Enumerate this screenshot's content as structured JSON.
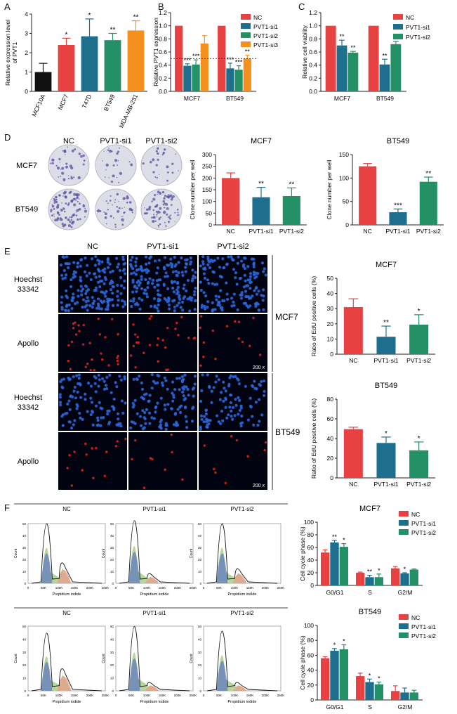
{
  "panel_letters": [
    "A",
    "B",
    "C",
    "D",
    "E",
    "F"
  ],
  "colors": {
    "black": "#111111",
    "red": "#e84142",
    "blue": "#1e6f8e",
    "green": "#239165",
    "orange": "#f4901d"
  },
  "chart_data": [
    {
      "id": "A",
      "type": "bar",
      "categories": [
        "MCF10A",
        "MCF7",
        "T47D",
        "BT549",
        "MDA-MB-231"
      ],
      "values": [
        1.0,
        2.4,
        2.85,
        2.65,
        3.15
      ],
      "errors": [
        0.45,
        0.35,
        0.9,
        0.35,
        0.5
      ],
      "sig": [
        "",
        "*",
        "*",
        "**",
        "**"
      ],
      "colors": [
        "#111111",
        "#e84142",
        "#1e6f8e",
        "#239165",
        "#f4901d"
      ],
      "ylabel": "Relative expression level of PVT1",
      "ylim": [
        0,
        4
      ],
      "yticks": [
        0,
        1,
        2,
        3,
        4
      ],
      "yticklabels": [
        "0",
        "1",
        "2",
        "3",
        "4"
      ]
    },
    {
      "id": "B",
      "type": "bar",
      "groups": [
        "MCF7",
        "BT549"
      ],
      "series": [
        {
          "name": "NC",
          "color": "#e84142",
          "values": [
            1.0,
            1.0
          ],
          "errors": [
            0,
            0
          ],
          "sig": [
            "",
            ""
          ]
        },
        {
          "name": "PVT1-si1",
          "color": "#1e6f8e",
          "values": [
            0.39,
            0.35
          ],
          "errors": [
            0.03,
            0.08
          ],
          "sig": [
            "***",
            "***"
          ]
        },
        {
          "name": "PVT1-si2",
          "color": "#239165",
          "values": [
            0.41,
            0.33
          ],
          "errors": [
            0.07,
            0.06
          ],
          "sig": [
            "***",
            "***"
          ]
        },
        {
          "name": "PVT1-si3",
          "color": "#f4901d",
          "values": [
            0.73,
            0.5
          ],
          "errors": [
            0.12,
            0.05
          ],
          "sig": [
            "",
            "**"
          ]
        }
      ],
      "ylabel": "Relative PVT1 expression",
      "ylim": [
        0,
        1.2
      ],
      "yticks": [
        0,
        0.2,
        0.4,
        0.6,
        0.8,
        1.0,
        1.2
      ],
      "yticklabels": [
        "0.0",
        "0.2",
        "0.4",
        "0.6",
        "0.8",
        "1.0",
        "1.2"
      ],
      "refline": 0.5
    },
    {
      "id": "C",
      "type": "bar",
      "groups": [
        "MCF7",
        "BT549"
      ],
      "series": [
        {
          "name": "NC",
          "color": "#e84142",
          "values": [
            1.0,
            1.0
          ],
          "errors": [
            0,
            0
          ],
          "sig": [
            "",
            ""
          ]
        },
        {
          "name": "PVT1-si1",
          "color": "#1e6f8e",
          "values": [
            0.7,
            0.41
          ],
          "errors": [
            0.08,
            0.08
          ],
          "sig": [
            "**",
            "**"
          ]
        },
        {
          "name": "PVT1-si2",
          "color": "#239165",
          "values": [
            0.59,
            0.72
          ],
          "errors": [
            0.02,
            0.04
          ],
          "sig": [
            "**",
            "**"
          ]
        }
      ],
      "ylabel": "Relative cell viability",
      "ylim": [
        0,
        1.2
      ],
      "yticks": [
        0,
        0.2,
        0.4,
        0.6,
        0.8,
        1.0,
        1.2
      ],
      "yticklabels": [
        "0.0",
        "0.2",
        "0.4",
        "0.6",
        "0.8",
        "1.0",
        "1.2"
      ]
    },
    {
      "id": "D-MCF7",
      "type": "bar",
      "title": "MCF7",
      "categories": [
        "NC",
        "PVT1-si1",
        "PVT1-si2"
      ],
      "values": [
        200,
        118,
        123
      ],
      "errors": [
        22,
        42,
        35
      ],
      "sig": [
        "",
        "**",
        "**"
      ],
      "colors": [
        "#e84142",
        "#1e6f8e",
        "#239165"
      ],
      "ylabel": "Clone number per well",
      "ylim": [
        0,
        300
      ],
      "yticks": [
        0,
        50,
        100,
        150,
        200,
        250,
        300
      ],
      "yticklabels": [
        "0",
        "50",
        "100",
        "150",
        "200",
        "250",
        "300"
      ]
    },
    {
      "id": "D-BT549",
      "type": "bar",
      "title": "BT549",
      "categories": [
        "NC",
        "PVT1-si1",
        "PVT1-si2"
      ],
      "values": [
        125,
        27,
        92
      ],
      "errors": [
        6,
        7,
        10
      ],
      "sig": [
        "",
        "***",
        "**"
      ],
      "colors": [
        "#e84142",
        "#1e6f8e",
        "#239165"
      ],
      "ylabel": "Clone number per well",
      "ylim": [
        0,
        150
      ],
      "yticks": [
        0,
        50,
        100,
        150
      ],
      "yticklabels": [
        "0",
        "50",
        "100",
        "150"
      ]
    },
    {
      "id": "E-MCF7",
      "type": "bar",
      "title": "MCF7",
      "categories": [
        "NC",
        "PVT1-si1",
        "PVT1-si2"
      ],
      "values": [
        31,
        11.5,
        19.5
      ],
      "errors": [
        5.5,
        7,
        6.5
      ],
      "sig": [
        "",
        "**",
        "*"
      ],
      "colors": [
        "#e84142",
        "#1e6f8e",
        "#239165"
      ],
      "ylabel": "Ratio of EdU positive cells (%)",
      "ylim": [
        0,
        50
      ],
      "yticks": [
        0,
        10,
        20,
        30,
        40,
        50
      ],
      "yticklabels": [
        "0",
        "10",
        "20",
        "30",
        "40",
        "50"
      ]
    },
    {
      "id": "E-BT549",
      "type": "bar",
      "title": "BT549",
      "categories": [
        "NC",
        "PVT1-si1",
        "PVT1-si2"
      ],
      "values": [
        49.5,
        35.5,
        28
      ],
      "errors": [
        2,
        6,
        8.5
      ],
      "sig": [
        "",
        "*",
        "*"
      ],
      "colors": [
        "#e84142",
        "#1e6f8e",
        "#239165"
      ],
      "ylabel": "Ratio of EdU positive cells (%)",
      "ylim": [
        0,
        80
      ],
      "yticks": [
        0,
        20,
        40,
        60,
        80
      ],
      "yticklabels": [
        "0",
        "20",
        "40",
        "60",
        "80"
      ]
    },
    {
      "id": "F-MCF7",
      "type": "bar",
      "title": "MCF7",
      "groups": [
        "G0/G1",
        "S",
        "G2/M"
      ],
      "series": [
        {
          "name": "NC",
          "color": "#e84142",
          "values": [
            52,
            20,
            27
          ],
          "errors": [
            4,
            1,
            3
          ],
          "sig": [
            "",
            "",
            ""
          ]
        },
        {
          "name": "PVT1-si1",
          "color": "#1e6f8e",
          "values": [
            68,
            13,
            19
          ],
          "errors": [
            3,
            3,
            1
          ],
          "sig": [
            "**",
            "**",
            "*"
          ]
        },
        {
          "name": "PVT1-si2",
          "color": "#239165",
          "values": [
            61,
            13,
            25
          ],
          "errors": [
            5,
            5,
            1
          ],
          "sig": [
            "*",
            "*",
            ""
          ]
        }
      ],
      "ylabel": "Cell cycle phase (%)",
      "ylim": [
        0,
        100
      ],
      "yticks": [
        0,
        20,
        40,
        60,
        80,
        100
      ],
      "yticklabels": [
        "0",
        "20",
        "40",
        "60",
        "80",
        "100"
      ]
    },
    {
      "id": "F-BT549",
      "type": "bar",
      "title": "BT549",
      "groups": [
        "G0/G1",
        "S",
        "G2/M"
      ],
      "series": [
        {
          "name": "NC",
          "color": "#e84142",
          "values": [
            56,
            32,
            12
          ],
          "errors": [
            2,
            4,
            7
          ],
          "sig": [
            "",
            "",
            ""
          ]
        },
        {
          "name": "PVT1-si1",
          "color": "#1e6f8e",
          "values": [
            66,
            24,
            10
          ],
          "errors": [
            3,
            4,
            6
          ],
          "sig": [
            "*",
            "*",
            ""
          ]
        },
        {
          "name": "PVT1-si2",
          "color": "#239165",
          "values": [
            68,
            21,
            10
          ],
          "errors": [
            6,
            3,
            3
          ],
          "sig": [
            "*",
            "*",
            ""
          ]
        }
      ],
      "ylabel": "Cell cycle phase (%)",
      "ylim": [
        0,
        100
      ],
      "yticks": [
        0,
        20,
        40,
        60,
        80,
        100
      ],
      "yticklabels": [
        "0",
        "20",
        "40",
        "60",
        "80",
        "100"
      ]
    }
  ],
  "panel_d": {
    "column_labels": [
      "NC",
      "PVT1-si1",
      "PVT1-si2"
    ],
    "row_labels": [
      "MCF7",
      "BT549"
    ]
  },
  "panel_e": {
    "column_labels": [
      "NC",
      "PVT1-si1",
      "PVT1-si2"
    ],
    "row_labels": [
      "Hoechst\n33342",
      "Apollo",
      "Hoechst\n33342",
      "Apollo"
    ],
    "cell_labels": [
      "MCF7",
      "BT549"
    ],
    "magnification": "200 x"
  },
  "panel_f": {
    "column_labels": [
      "NC",
      "PVT1-si1",
      "PVT1-si2"
    ],
    "xlabel": "Propidium iodide",
    "ylabel": "Count",
    "xticks": [
      "0",
      "50K",
      "100K",
      "150K",
      "200K",
      "250K"
    ],
    "yticks_mcf7": [
      "0",
      "10",
      "20",
      "30",
      "40",
      "50"
    ],
    "yticks_bt549": [
      "0",
      "10",
      "20",
      "30",
      "40",
      "50"
    ]
  }
}
